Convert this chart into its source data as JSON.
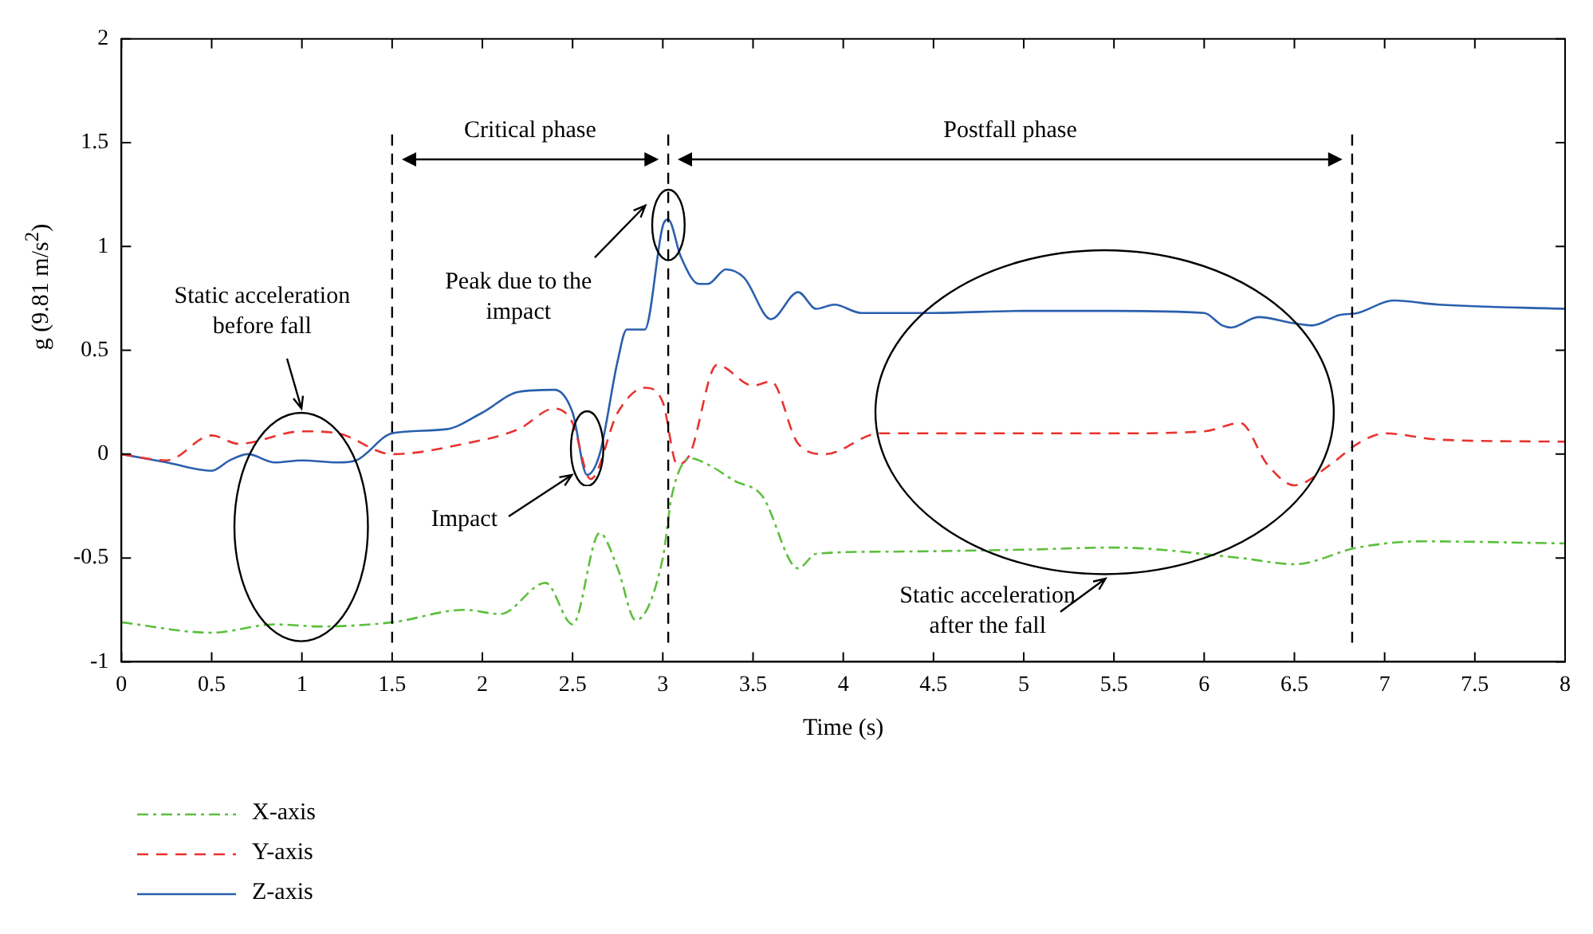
{
  "chart_data": {
    "type": "line",
    "xlabel": "Time (s)",
    "ylabel": "g (9.81 m/s$^{2}$)",
    "xlim": [
      0,
      8
    ],
    "xticks": [
      0,
      0.5,
      1,
      1.5,
      2,
      2.5,
      3,
      3.5,
      4,
      4.5,
      5,
      5.5,
      6,
      6.5,
      7,
      7.5,
      8
    ],
    "ylim": [
      -1,
      2
    ],
    "yticks": [
      -1,
      -0.5,
      0,
      0.5,
      1,
      1.5,
      2
    ],
    "grid": false,
    "legend": "bottom left",
    "series": [
      {
        "name": "X-axis",
        "color": "#5cbf3c",
        "line_style": "dashdot",
        "x": [
          0,
          0.5,
          0.85,
          1.1,
          1.5,
          1.9,
          2.1,
          2.35,
          2.5,
          2.65,
          2.75,
          2.85,
          3.0,
          3.05,
          3.15,
          3.25,
          3.4,
          3.55,
          3.75,
          3.85,
          4.2,
          5,
          5.5,
          6.2,
          6.5,
          6.85,
          7.2,
          8
        ],
        "values": [
          -0.81,
          -0.86,
          -0.82,
          -0.83,
          -0.81,
          -0.75,
          -0.77,
          -0.62,
          -0.82,
          -0.38,
          -0.55,
          -0.8,
          -0.5,
          -0.2,
          -0.02,
          -0.05,
          -0.13,
          -0.2,
          -0.55,
          -0.48,
          -0.47,
          -0.46,
          -0.45,
          -0.5,
          -0.53,
          -0.45,
          -0.42,
          -0.43
        ]
      },
      {
        "name": "Y-axis",
        "color": "#e8332f",
        "line_style": "dashed",
        "x": [
          0,
          0.25,
          0.5,
          0.65,
          1.0,
          1.2,
          1.5,
          1.9,
          2.2,
          2.4,
          2.5,
          2.6,
          2.75,
          2.9,
          3.0,
          3.08,
          3.15,
          3.3,
          3.5,
          3.6,
          3.75,
          3.9,
          4.2,
          5,
          5.5,
          6.0,
          6.2,
          6.35,
          6.5,
          6.7,
          6.85,
          7.0,
          7.3,
          8
        ],
        "values": [
          0,
          -0.03,
          0.09,
          0.05,
          0.11,
          0.1,
          0.0,
          0.05,
          0.12,
          0.22,
          0.15,
          -0.12,
          0.2,
          0.32,
          0.25,
          -0.05,
          0.0,
          0.43,
          0.33,
          0.35,
          0.05,
          0.0,
          0.1,
          0.1,
          0.1,
          0.11,
          0.15,
          -0.05,
          -0.15,
          -0.05,
          0.05,
          0.1,
          0.07,
          0.06
        ]
      },
      {
        "name": "Z-axis",
        "color": "#2a5fad",
        "line_style": "solid",
        "x": [
          0,
          0.25,
          0.5,
          0.6,
          0.7,
          0.85,
          1.0,
          1.2,
          1.3,
          1.5,
          1.8,
          2.0,
          2.2,
          2.4,
          2.5,
          2.58,
          2.65,
          2.75,
          2.8,
          2.9,
          3.0,
          3.03,
          3.1,
          3.2,
          3.25,
          3.35,
          3.45,
          3.6,
          3.75,
          3.85,
          3.95,
          4.1,
          4.5,
          5,
          5.5,
          6.0,
          6.1,
          6.15,
          6.3,
          6.5,
          6.6,
          6.75,
          6.85,
          7.05,
          7.3,
          8
        ],
        "values": [
          0,
          -0.04,
          -0.08,
          -0.03,
          0.0,
          -0.04,
          -0.03,
          -0.04,
          -0.03,
          0.1,
          0.12,
          0.2,
          0.3,
          0.31,
          0.2,
          -0.1,
          0.0,
          0.45,
          0.6,
          0.6,
          1.1,
          1.13,
          0.95,
          0.82,
          0.82,
          0.89,
          0.85,
          0.65,
          0.78,
          0.7,
          0.72,
          0.68,
          0.68,
          0.69,
          0.69,
          0.68,
          0.62,
          0.61,
          0.66,
          0.63,
          0.62,
          0.67,
          0.68,
          0.74,
          0.72,
          0.7
        ]
      }
    ],
    "ref_lines": [
      {
        "axis": "x",
        "value": 1.5,
        "line_style": "dashed",
        "color": "#000000"
      },
      {
        "axis": "x",
        "value": 3.03,
        "line_style": "dashed",
        "color": "#000000"
      },
      {
        "axis": "x",
        "value": 6.82,
        "line_style": "dashed",
        "color": "#000000"
      }
    ],
    "annotations": [
      "Static acceleration before fall",
      "Impact",
      "Peak due to the impact",
      "Static acceleration after the fall",
      "Critical phase",
      "Postfall phase"
    ]
  }
}
